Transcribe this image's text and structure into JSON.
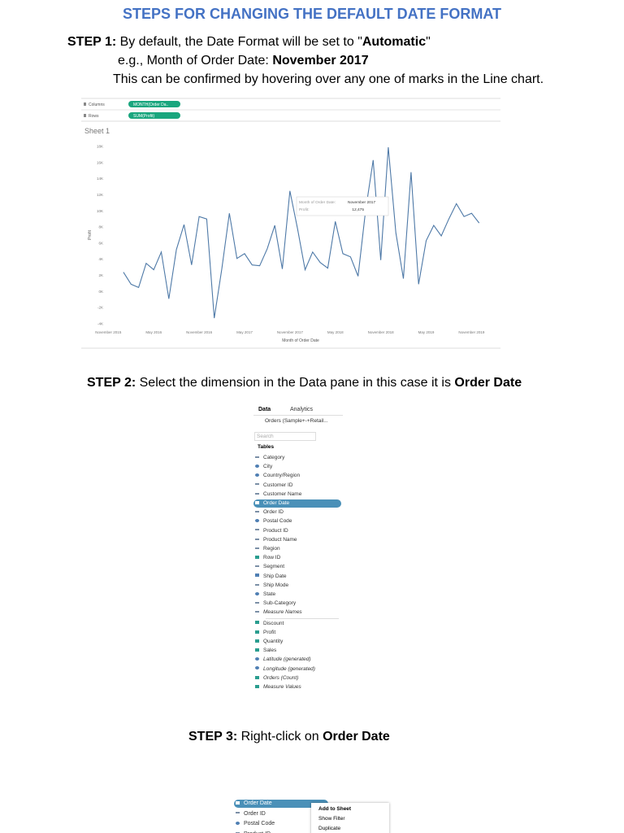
{
  "title": "STEPS FOR CHANGING THE DEFAULT DATE FORMAT",
  "steps": [
    {
      "lines": [
        [
          {
            "text": "STEP 1:",
            "bold": true
          },
          {
            "text": " By default, the Date Format will be set to \""
          },
          {
            "text": "Automatic",
            "bold": true
          },
          {
            "text": "\""
          }
        ],
        [
          {
            "text": "e.g., Month of Order Date: "
          },
          {
            "text": "November 2017",
            "bold": true
          }
        ],
        [
          {
            "text": "This can be confirmed by hovering over any one of marks in the Line chart."
          }
        ]
      ]
    },
    {
      "lines": [
        [
          {
            "text": "STEP 2:",
            "bold": true
          },
          {
            "text": " Select the dimension in the Data pane in this case it is "
          },
          {
            "text": "Order Date",
            "bold": true
          }
        ]
      ]
    },
    {
      "lines": [
        [
          {
            "text": "STEP 3:",
            "bold": true
          },
          {
            "text": " Right-click on "
          },
          {
            "text": "Order Date",
            "bold": true
          }
        ]
      ]
    }
  ],
  "worksheet": {
    "shelves": [
      {
        "label": "Columns",
        "pill": "MONTH(Order Da.."
      },
      {
        "label": "Rows",
        "pill": "SUM(Profit)"
      }
    ],
    "sheet": "Sheet 1"
  },
  "chart_data": {
    "type": "line",
    "x_label": "Month of Order Date",
    "y_label": "Profit",
    "color": "#4e79a7",
    "x": [
      "2016-01",
      "2016-02",
      "2016-03",
      "2016-04",
      "2016-05",
      "2016-06",
      "2016-07",
      "2016-08",
      "2016-09",
      "2016-10",
      "2016-11",
      "2016-12",
      "2017-01",
      "2017-02",
      "2017-03",
      "2017-04",
      "2017-05",
      "2017-06",
      "2017-07",
      "2017-08",
      "2017-09",
      "2017-10",
      "2017-11",
      "2017-12",
      "2018-01",
      "2018-02",
      "2018-03",
      "2018-04",
      "2018-05",
      "2018-06",
      "2018-07",
      "2018-08",
      "2018-09",
      "2018-10",
      "2018-11",
      "2018-12",
      "2019-01",
      "2019-02",
      "2019-03",
      "2019-04",
      "2019-05",
      "2019-06",
      "2019-07",
      "2019-08",
      "2019-09",
      "2019-10",
      "2019-11",
      "2019-12"
    ],
    "values": [
      2400,
      900,
      500,
      3500,
      2700,
      4900,
      -900,
      5200,
      8300,
      3300,
      9300,
      9000,
      -3300,
      2800,
      9700,
      4100,
      4700,
      3300,
      3200,
      5300,
      8200,
      2800,
      12475,
      7800,
      2700,
      4900,
      3600,
      2900,
      8700,
      4700,
      4300,
      1900,
      10100,
      16300,
      3900,
      17900,
      7300,
      1600,
      14800,
      900,
      6300,
      8200,
      6900,
      9000,
      10900,
      9300,
      9700,
      8500
    ],
    "xlim": [
      "2015-10",
      "2020-01"
    ],
    "xticks": [
      {
        "value": "2015-11",
        "label": "November 2015"
      },
      {
        "value": "2016-05",
        "label": "May 2016"
      },
      {
        "value": "2016-11",
        "label": "November 2016"
      },
      {
        "value": "2017-05",
        "label": "May 2017"
      },
      {
        "value": "2017-11",
        "label": "November 2017"
      },
      {
        "value": "2018-05",
        "label": "May 2018"
      },
      {
        "value": "2018-11",
        "label": "November 2018"
      },
      {
        "value": "2019-05",
        "label": "May 2019"
      },
      {
        "value": "2019-11",
        "label": "November 2019"
      }
    ],
    "ylim": [
      -4000,
      18000
    ],
    "yticks": [
      {
        "value": 18000,
        "label": "18K"
      },
      {
        "value": 16000,
        "label": "16K"
      },
      {
        "value": 14000,
        "label": "14K"
      },
      {
        "value": 12000,
        "label": "12K"
      },
      {
        "value": 10000,
        "label": "10K"
      },
      {
        "value": 8000,
        "label": "8K"
      },
      {
        "value": 6000,
        "label": "6K"
      },
      {
        "value": 4000,
        "label": "4K"
      },
      {
        "value": 2000,
        "label": "2K"
      },
      {
        "value": 0,
        "label": "0K"
      },
      {
        "value": -2000,
        "label": "-2K"
      },
      {
        "value": -4000,
        "label": "-4K"
      }
    ],
    "grid": false,
    "tooltip": {
      "x_label": "Month of Order Date:",
      "x_value": "November 2017",
      "y_label": "Profit:",
      "y_value": "12,475"
    }
  },
  "data_pane": {
    "tabs": [
      "Data",
      "Analytics"
    ],
    "source": "Orders (Sample+-+Retail...",
    "search": "Search",
    "section": "Tables",
    "selected": 5,
    "separator_after": 17,
    "fields": [
      {
        "name": "Category",
        "kind": "string"
      },
      {
        "name": "City",
        "kind": "geo"
      },
      {
        "name": "Country/Region",
        "kind": "geo"
      },
      {
        "name": "Customer ID",
        "kind": "string"
      },
      {
        "name": "Customer Name",
        "kind": "string"
      },
      {
        "name": "Order Date",
        "kind": "date"
      },
      {
        "name": "Order ID",
        "kind": "string"
      },
      {
        "name": "Postal Code",
        "kind": "geo"
      },
      {
        "name": "Product ID",
        "kind": "string"
      },
      {
        "name": "Product Name",
        "kind": "string"
      },
      {
        "name": "Region",
        "kind": "string"
      },
      {
        "name": "Row ID",
        "kind": "number"
      },
      {
        "name": "Segment",
        "kind": "string"
      },
      {
        "name": "Ship Date",
        "kind": "date"
      },
      {
        "name": "Ship Mode",
        "kind": "string"
      },
      {
        "name": "State",
        "kind": "geo"
      },
      {
        "name": "Sub-Category",
        "kind": "string"
      },
      {
        "name": "Measure Names",
        "kind": "string",
        "italic": true
      },
      {
        "name": "Discount",
        "kind": "number"
      },
      {
        "name": "Profit",
        "kind": "number"
      },
      {
        "name": "Quantity",
        "kind": "number"
      },
      {
        "name": "Sales",
        "kind": "number"
      },
      {
        "name": "Latitude (generated)",
        "kind": "geo",
        "italic": true
      },
      {
        "name": "Longitude (generated)",
        "kind": "geo",
        "italic": true
      },
      {
        "name": "Orders (Count)",
        "kind": "number",
        "italic": true
      },
      {
        "name": "Measure Values",
        "kind": "number",
        "italic": true
      }
    ]
  },
  "context": {
    "fields": [
      {
        "name": "Order Date",
        "kind": "date"
      },
      {
        "name": "Order ID",
        "kind": "string"
      },
      {
        "name": "Postal Code",
        "kind": "geo"
      },
      {
        "name": "Product ID",
        "kind": "string"
      }
    ],
    "selected": 0,
    "menu": [
      {
        "text": "Add to Sheet",
        "bold": true
      },
      {
        "text": "Show Filter"
      },
      {
        "text": "Duplicate"
      }
    ]
  }
}
